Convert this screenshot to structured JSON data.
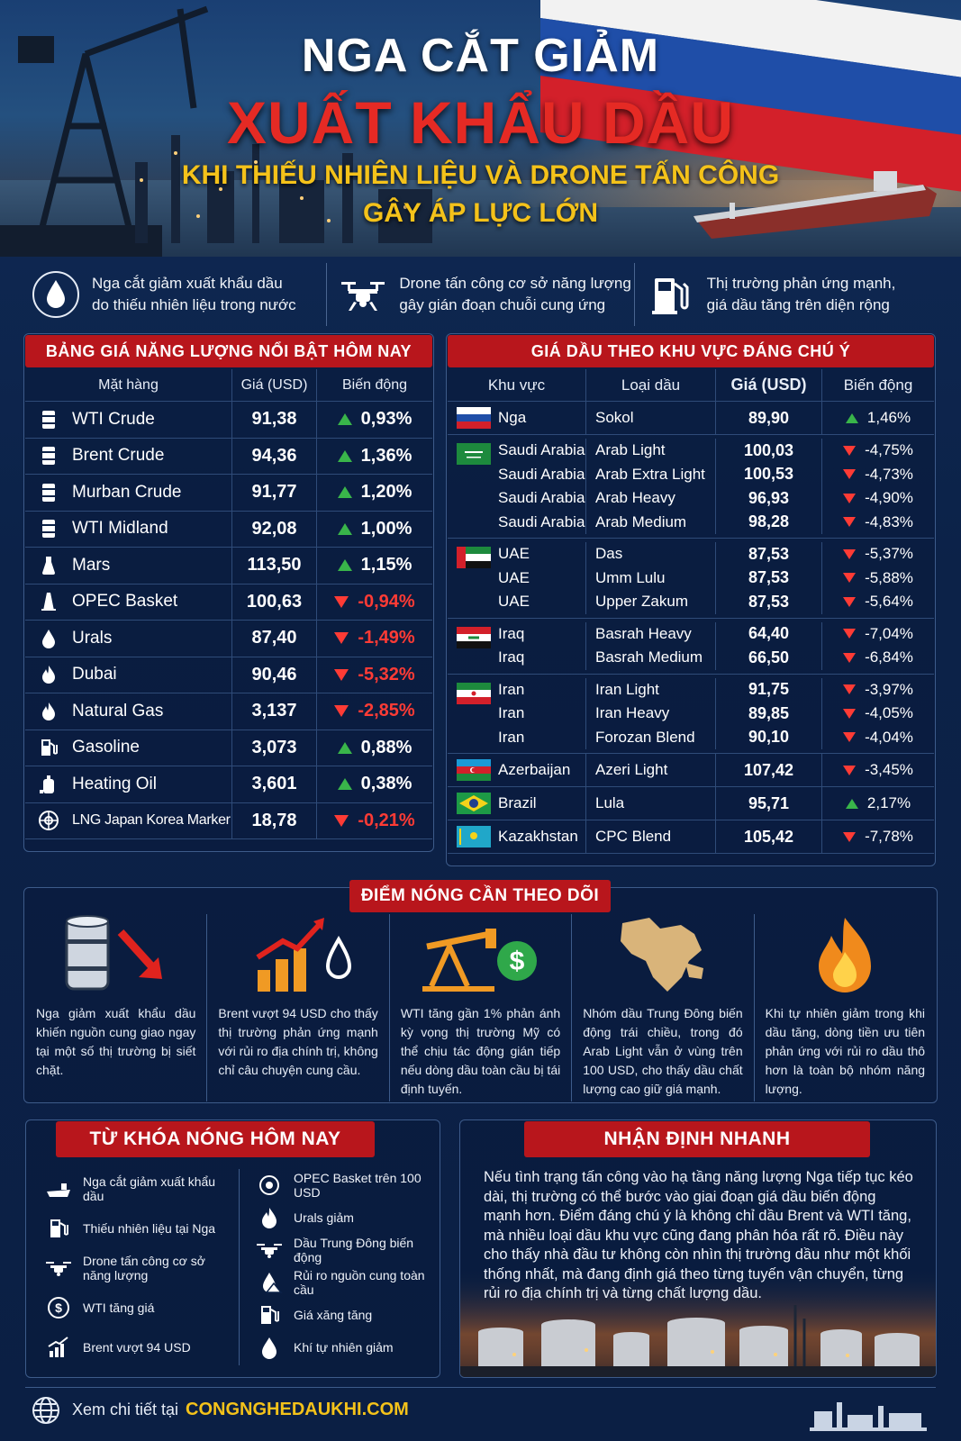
{
  "header": {
    "title_line1": "NGA CẮT GIẢM",
    "title_line2": "XUẤT KHẨU DẦU",
    "subtitle_line1": "KHI THIẾU NHIÊN LIỆU VÀ DRONE TẤN CÔNG",
    "subtitle_line2": "GÂY ÁP LỰC LỚN"
  },
  "features": [
    {
      "icon": "oil-drop-icon",
      "line1": "Nga cắt giảm xuất khẩu dầu",
      "line2": "do thiếu nhiên liệu trong nước"
    },
    {
      "icon": "drone-icon",
      "line1": "Drone tấn công cơ sở năng lượng",
      "line2": "gây gián đoạn chuỗi cung ứng"
    },
    {
      "icon": "fuel-pump-icon",
      "line1": "Thị trường phản ứng mạnh,",
      "line2": "giá dầu tăng trên diện rộng"
    }
  ],
  "energy_table": {
    "title": "BẢNG GIÁ NĂNG LƯỢNG NỔI BẬT HÔM NAY",
    "headers": [
      "Mặt hàng",
      "Giá (USD)",
      "Biến động"
    ],
    "rows": [
      {
        "icon": "barrel-icon",
        "name": "WTI Crude",
        "price": "91,38",
        "change": "0,93%",
        "dir": "up"
      },
      {
        "icon": "barrel-icon",
        "name": "Brent Crude",
        "price": "94,36",
        "change": "1,36%",
        "dir": "up"
      },
      {
        "icon": "barrel-icon",
        "name": "Murban Crude",
        "price": "91,77",
        "change": "1,20%",
        "dir": "up"
      },
      {
        "icon": "barrel-icon",
        "name": "WTI Midland",
        "price": "92,08",
        "change": "1,00%",
        "dir": "up"
      },
      {
        "icon": "flask-icon",
        "name": "Mars",
        "price": "113,50",
        "change": "1,15%",
        "dir": "up"
      },
      {
        "icon": "oil-tower-icon",
        "name": "OPEC Basket",
        "price": "100,63",
        "change": "-0,94%",
        "dir": "down"
      },
      {
        "icon": "oil-drop-icon",
        "name": "Urals",
        "price": "87,40",
        "change": "-1,49%",
        "dir": "down"
      },
      {
        "icon": "flame-icon",
        "name": "Dubai",
        "price": "90,46",
        "change": "-5,32%",
        "dir": "down"
      },
      {
        "icon": "flame-icon",
        "name": "Natural Gas",
        "price": "3,137",
        "change": "-2,85%",
        "dir": "down"
      },
      {
        "icon": "fuel-pump-icon",
        "name": "Gasoline",
        "price": "3,073",
        "change": "0,88%",
        "dir": "up"
      },
      {
        "icon": "heating-oil-icon",
        "name": "Heating Oil",
        "price": "3,601",
        "change": "0,38%",
        "dir": "up"
      },
      {
        "icon": "lng-icon",
        "name": "LNG Japan Korea Marker",
        "price": "18,78",
        "change": "-0,21%",
        "dir": "down"
      }
    ]
  },
  "regional_table": {
    "title": "GIÁ DẦU THEO KHU VỰC ĐÁNG CHÚ Ý",
    "headers": [
      "Khu vực",
      "Loại dầu",
      "Giá (USD)",
      "Biến động"
    ],
    "groups": [
      {
        "flag": "russia",
        "rows": [
          {
            "region": "Nga",
            "grade": "Sokol",
            "price": "89,90",
            "change": "1,46%",
            "dir": "up"
          }
        ]
      },
      {
        "flag": "saudi",
        "rows": [
          {
            "region": "Saudi Arabia",
            "grade": "Arab Light",
            "price": "100,03",
            "change": "-4,75%",
            "dir": "down"
          },
          {
            "region": "Saudi Arabia",
            "grade": "Arab Extra Light",
            "price": "100,53",
            "change": "-4,73%",
            "dir": "down"
          },
          {
            "region": "Saudi Arabia",
            "grade": "Arab Heavy",
            "price": "96,93",
            "change": "-4,90%",
            "dir": "down"
          },
          {
            "region": "Saudi Arabia",
            "grade": "Arab Medium",
            "price": "98,28",
            "change": "-4,83%",
            "dir": "down"
          }
        ]
      },
      {
        "flag": "uae",
        "rows": [
          {
            "region": "UAE",
            "grade": "Das",
            "price": "87,53",
            "change": "-5,37%",
            "dir": "down"
          },
          {
            "region": "UAE",
            "grade": "Umm Lulu",
            "price": "87,53",
            "change": "-5,88%",
            "dir": "down"
          },
          {
            "region": "UAE",
            "grade": "Upper Zakum",
            "price": "87,53",
            "change": "-5,64%",
            "dir": "down"
          }
        ]
      },
      {
        "flag": "iraq",
        "rows": [
          {
            "region": "Iraq",
            "grade": "Basrah Heavy",
            "price": "64,40",
            "change": "-7,04%",
            "dir": "down"
          },
          {
            "region": "Iraq",
            "grade": "Basrah Medium",
            "price": "66,50",
            "change": "-6,84%",
            "dir": "down"
          }
        ]
      },
      {
        "flag": "iran",
        "rows": [
          {
            "region": "Iran",
            "grade": "Iran Light",
            "price": "91,75",
            "change": "-3,97%",
            "dir": "down"
          },
          {
            "region": "Iran",
            "grade": "Iran Heavy",
            "price": "89,85",
            "change": "-4,05%",
            "dir": "down"
          },
          {
            "region": "Iran",
            "grade": "Forozan Blend",
            "price": "90,10",
            "change": "-4,04%",
            "dir": "down"
          }
        ]
      },
      {
        "flag": "azerbaijan",
        "rows": [
          {
            "region": "Azerbaijan",
            "grade": "Azeri Light",
            "price": "107,42",
            "change": "-3,45%",
            "dir": "down"
          }
        ]
      },
      {
        "flag": "brazil",
        "rows": [
          {
            "region": "Brazil",
            "grade": "Lula",
            "price": "95,71",
            "change": "2,17%",
            "dir": "up"
          }
        ]
      },
      {
        "flag": "kazakhstan",
        "rows": [
          {
            "region": "Kazakhstan",
            "grade": "CPC Blend",
            "price": "105,42",
            "change": "-7,78%",
            "dir": "down"
          }
        ]
      }
    ]
  },
  "hotspots": {
    "title": "ĐIỂM NÓNG CẦN THEO DÕI",
    "items": [
      {
        "icon": "barrel-down-arrow-icon",
        "text": "Nga giảm xuất khẩu dầu khiến nguồn cung giao ngay tại một số thị trường bị siết chặt."
      },
      {
        "icon": "rising-chart-icon",
        "text": "Brent vượt 94 USD cho thấy thị trường phản ứng mạnh với rủi ro địa chính trị, không chỉ câu chuyện cung cầu."
      },
      {
        "icon": "pumpjack-dollar-icon",
        "text": "WTI tăng gần 1% phản ánh kỳ vọng thị trường Mỹ có thể chịu tác động gián tiếp nếu dòng dầu toàn cầu bị tái định tuyến."
      },
      {
        "icon": "middle-east-map-icon",
        "text": "Nhóm dầu Trung Đông biến động trái chiều, trong đó Arab Light vẫn ở vùng trên 100 USD, cho thấy dầu chất lượng cao giữ giá mạnh."
      },
      {
        "icon": "fire-icon",
        "text": "Khi tự nhiên giảm trong khi dầu tăng, dòng tiền ưu tiên phản ứng với rủi ro dầu thô hơn là toàn bộ nhóm năng lượng."
      }
    ]
  },
  "keywords": {
    "title": "TỪ KHÓA NÓNG HÔM NAY",
    "left": [
      {
        "icon": "tanker-ship-icon",
        "text": "Nga cắt giảm xuất khẩu dầu"
      },
      {
        "icon": "fuel-pump-icon",
        "text": "Thiếu nhiên liệu tại Nga"
      },
      {
        "icon": "drone-icon",
        "text": "Drone tấn công cơ sở năng lượng"
      },
      {
        "icon": "dollar-circle-icon",
        "text": "WTI tăng giá"
      },
      {
        "icon": "rising-chart-icon",
        "text": "Brent vượt 94 USD"
      }
    ],
    "right": [
      {
        "icon": "opec-icon",
        "text": "OPEC Basket trên 100 USD"
      },
      {
        "icon": "flame-icon",
        "text": "Urals giảm"
      },
      {
        "icon": "drone-icon",
        "text": "Dầu Trung Đông biến động"
      },
      {
        "icon": "warning-drop-icon",
        "text": "Rủi ro nguồn cung toàn cầu"
      },
      {
        "icon": "fuel-pump-icon",
        "text": "Giá xăng tăng"
      },
      {
        "icon": "oil-drop-icon",
        "text": "Khí tự nhiên giảm"
      }
    ]
  },
  "analysis": {
    "title": "NHẬN ĐỊNH NHANH",
    "text": "Nếu tình trạng tấn công vào hạ tầng năng lượng Nga tiếp tục kéo dài, thị trường có thể bước vào giai đoạn giá dầu biến động mạnh hơn. Điểm đáng chú ý là không chỉ dầu Brent và WTI tăng, mà nhiều loại dầu khu vực cũng đang phân hóa rất rõ. Điều này cho thấy nhà đầu tư không còn nhìn thị trường dầu như một khối thống nhất, mà đang định giá theo từng tuyến vận chuyển, từng rủi ro địa chính trị và từng chất lượng dầu."
  },
  "footer": {
    "label": "Xem chi tiết tại",
    "link": "CONGNGHEDAUKHI.COM"
  },
  "colors": {
    "background": "#0c2248",
    "banner_red": "#b8161c",
    "up_green": "#39b54a",
    "down_red": "#ff3b35",
    "accent_yellow": "#f4c21a"
  }
}
